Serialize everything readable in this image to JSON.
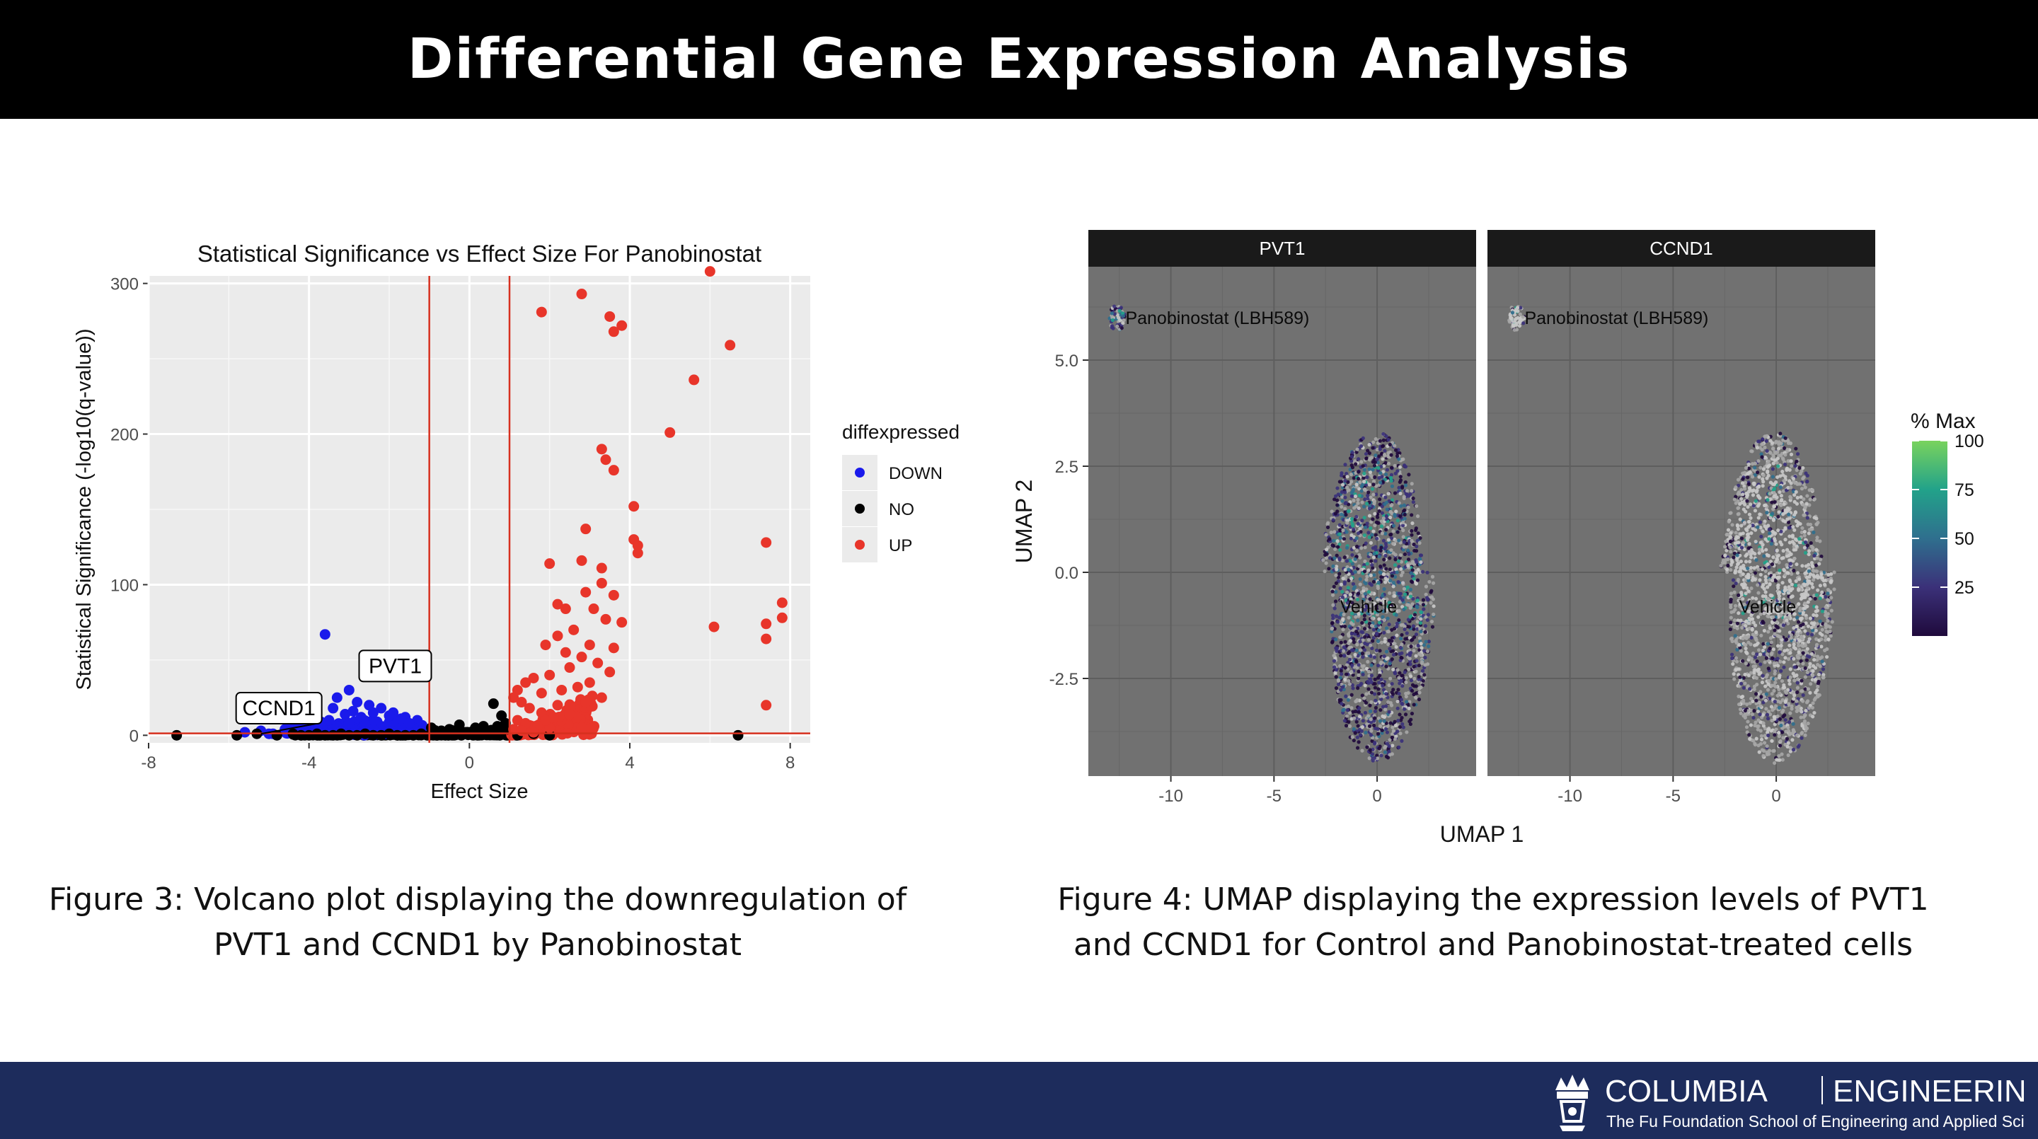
{
  "header": {
    "title": "Differential Gene Expression Analysis"
  },
  "captions": {
    "left_line1": "Figure 3: Volcano plot displaying the downregulation of",
    "left_line2": "PVT1 and CCND1 by Panobinostat",
    "right_line1": "Figure 4: UMAP displaying the expression levels of PVT1",
    "right_line2": "and CCND1 for Control and Panobinostat-treated cells"
  },
  "footer": {
    "brand_left": "COLUMBIA",
    "brand_right": "ENGINEERING",
    "subtitle": "The Fu Foundation School of Engineering and Applied Science"
  },
  "chart_data": [
    {
      "type": "scatter",
      "title": "Statistical Significance vs Effect Size For Panobinostat",
      "xlabel": "Effect Size",
      "ylabel": "Statistical Significance (-log10(q-value))",
      "xlim": [
        -8,
        8.5
      ],
      "ylim": [
        -5,
        305
      ],
      "xticks": [
        -8,
        -4,
        0,
        4,
        8
      ],
      "yticks": [
        0,
        100,
        200,
        300
      ],
      "grid": true,
      "vlines": [
        -1,
        1
      ],
      "hlines": [
        1.3
      ],
      "reference_line_color": "#d7301f",
      "legend": {
        "title": "diffexpressed",
        "position": "right"
      },
      "annotations": [
        {
          "text": "PVT1",
          "x": -2.6,
          "y": 46
        },
        {
          "text": "CCND1",
          "x": -5.2,
          "y": 1
        }
      ],
      "series": [
        {
          "name": "DOWN",
          "color": "#1a1aeb",
          "points": [
            [
              -3.6,
              67
            ],
            [
              -2.6,
              46
            ],
            [
              -3.0,
              30
            ],
            [
              -3.3,
              25
            ],
            [
              -2.8,
              22
            ],
            [
              -2.5,
              20
            ],
            [
              -2.2,
              18
            ],
            [
              -1.9,
              15
            ],
            [
              -1.6,
              12
            ],
            [
              -1.3,
              10
            ],
            [
              -3.8,
              18
            ],
            [
              -4.0,
              12
            ],
            [
              -3.5,
              10
            ],
            [
              -3.1,
              14
            ],
            [
              -2.7,
              12
            ],
            [
              -2.3,
              9
            ],
            [
              -2.0,
              8
            ],
            [
              -1.7,
              6
            ],
            [
              -1.4,
              5
            ],
            [
              -1.2,
              3
            ],
            [
              -4.3,
              6
            ],
            [
              -4.6,
              4
            ],
            [
              -5.2,
              3
            ],
            [
              -5.6,
              2
            ],
            [
              -4.9,
              1
            ],
            [
              -3.9,
              4
            ],
            [
              -3.3,
              6
            ],
            [
              -2.9,
              5
            ],
            [
              -2.4,
              4
            ],
            [
              -1.9,
              3
            ],
            [
              -1.5,
              2
            ],
            [
              -3.6,
              2
            ],
            [
              -2.8,
              1
            ],
            [
              -2.1,
              1
            ],
            [
              -4.2,
              2
            ],
            [
              -3.0,
              8
            ],
            [
              -2.6,
              7
            ],
            [
              -1.8,
              9
            ],
            [
              -1.1,
              4
            ],
            [
              -3.4,
              18
            ],
            [
              -2.0,
              13
            ],
            [
              -1.5,
              8
            ],
            [
              -2.9,
              16
            ],
            [
              -3.7,
              8
            ],
            [
              -2.4,
              15
            ],
            [
              -1.7,
              11
            ],
            [
              -3.2,
              3
            ],
            [
              -4.4,
              2
            ],
            [
              -5.0,
              1
            ]
          ]
        },
        {
          "name": "NO",
          "color": "#000000",
          "points": [
            [
              -7.3,
              0
            ],
            [
              -5.8,
              0
            ],
            [
              -5.3,
              1
            ],
            [
              -4.8,
              0
            ],
            [
              -4.4,
              1
            ],
            [
              -4.0,
              0
            ],
            [
              -3.6,
              0
            ],
            [
              -3.2,
              1
            ],
            [
              -2.8,
              0
            ],
            [
              -2.4,
              0
            ],
            [
              -2.0,
              1
            ],
            [
              -1.6,
              0
            ],
            [
              -1.2,
              1
            ],
            [
              -0.9,
              2
            ],
            [
              -0.7,
              3
            ],
            [
              -0.5,
              4
            ],
            [
              -0.3,
              3
            ],
            [
              -0.1,
              2
            ],
            [
              0.1,
              3
            ],
            [
              0.3,
              4
            ],
            [
              0.5,
              2
            ],
            [
              0.6,
              21
            ],
            [
              0.8,
              13
            ],
            [
              0.9,
              8
            ],
            [
              0.7,
              6
            ],
            [
              0.4,
              1
            ],
            [
              0.2,
              0
            ],
            [
              0.0,
              1
            ],
            [
              -0.2,
              0
            ],
            [
              -0.4,
              1
            ],
            [
              -0.6,
              0
            ],
            [
              -0.8,
              0
            ],
            [
              -1.0,
              0
            ],
            [
              -1.4,
              0
            ],
            [
              -1.8,
              0
            ],
            [
              -2.2,
              0
            ],
            [
              -2.6,
              1
            ],
            [
              -3.0,
              0
            ],
            [
              -3.4,
              0
            ],
            [
              -3.8,
              1
            ],
            [
              -4.2,
              0
            ],
            [
              6.7,
              0
            ],
            [
              1.2,
              0
            ],
            [
              1.6,
              1
            ],
            [
              2.0,
              0
            ],
            [
              0.95,
              4
            ],
            [
              -0.95,
              5
            ],
            [
              0.35,
              6
            ],
            [
              -0.25,
              7
            ],
            [
              0.15,
              5
            ]
          ]
        },
        {
          "name": "UP",
          "color": "#e8352a",
          "points": [
            [
              6.0,
              308
            ],
            [
              2.8,
              293
            ],
            [
              1.8,
              281
            ],
            [
              3.5,
              278
            ],
            [
              3.8,
              272
            ],
            [
              3.6,
              268
            ],
            [
              6.5,
              259
            ],
            [
              5.6,
              236
            ],
            [
              5.0,
              201
            ],
            [
              3.3,
              190
            ],
            [
              3.4,
              183
            ],
            [
              3.6,
              176
            ],
            [
              4.1,
              152
            ],
            [
              2.9,
              137
            ],
            [
              4.1,
              130
            ],
            [
              4.2,
              126
            ],
            [
              4.2,
              121
            ],
            [
              7.4,
              128
            ],
            [
              3.3,
              111
            ],
            [
              2.0,
              114
            ],
            [
              2.8,
              116
            ],
            [
              3.3,
              101
            ],
            [
              3.6,
              93
            ],
            [
              2.9,
              95
            ],
            [
              3.1,
              84
            ],
            [
              2.4,
              84
            ],
            [
              2.2,
              87
            ],
            [
              7.8,
              88
            ],
            [
              7.8,
              78
            ],
            [
              7.4,
              74
            ],
            [
              7.4,
              64
            ],
            [
              6.1,
              72
            ],
            [
              3.8,
              75
            ],
            [
              3.4,
              77
            ],
            [
              2.6,
              70
            ],
            [
              2.2,
              66
            ],
            [
              3.0,
              60
            ],
            [
              3.6,
              58
            ],
            [
              1.9,
              60
            ],
            [
              2.4,
              55
            ],
            [
              2.8,
              52
            ],
            [
              3.2,
              48
            ],
            [
              3.5,
              42
            ],
            [
              2.5,
              45
            ],
            [
              2.0,
              40
            ],
            [
              1.6,
              38
            ],
            [
              1.4,
              35
            ],
            [
              1.2,
              30
            ],
            [
              1.1,
              25
            ],
            [
              1.3,
              22
            ],
            [
              1.8,
              28
            ],
            [
              2.3,
              30
            ],
            [
              2.7,
              32
            ],
            [
              3.0,
              35
            ],
            [
              1.5,
              18
            ],
            [
              1.8,
              15
            ],
            [
              2.1,
              12
            ],
            [
              2.5,
              14
            ],
            [
              1.2,
              10
            ],
            [
              1.4,
              8
            ],
            [
              1.7,
              6
            ],
            [
              2.0,
              5
            ],
            [
              1.1,
              4
            ],
            [
              1.3,
              3
            ],
            [
              1.6,
              2
            ],
            [
              7.4,
              20
            ],
            [
              3.3,
              25
            ],
            [
              2.9,
              22
            ],
            [
              2.2,
              20
            ],
            [
              1.9,
              10
            ]
          ]
        }
      ]
    },
    {
      "type": "scatter",
      "subtype": "umap-facets",
      "xlabel": "UMAP 1",
      "ylabel": "UMAP 2",
      "xlim": [
        -14,
        4.8
      ],
      "ylim": [
        -4.8,
        7.2
      ],
      "xticks": [
        -10,
        -5,
        0
      ],
      "yticks": [
        -2.5,
        0.0,
        2.5,
        5.0
      ],
      "ytick_labels": [
        "-2.5",
        "0.0",
        "2.5",
        "5.0"
      ],
      "panel_background": "#717171",
      "facets": [
        {
          "name": "PVT1",
          "bright_fraction": 0.15
        },
        {
          "name": "CCND1",
          "bright_fraction": 0.55
        }
      ],
      "cluster_labels": [
        {
          "text": "Panobinostat (LBH589)",
          "x": -12.2,
          "y": 6.0
        },
        {
          "text": "Vehicle",
          "x": -1.8,
          "y": -0.8
        }
      ],
      "clusters": [
        {
          "name": "Panobinostat (LBH589)",
          "center": [
            -12.6,
            6.0
          ],
          "radius": [
            0.4,
            0.3
          ]
        },
        {
          "name": "Vehicle",
          "center": [
            0.0,
            -0.6
          ],
          "radius": [
            2.5,
            3.9
          ]
        }
      ],
      "colorbar": {
        "title": "% Max",
        "ticks": [
          25,
          50,
          75,
          100
        ],
        "range": [
          0,
          100
        ],
        "colors": [
          "#1f0a3c",
          "#3b3179",
          "#2f6f8e",
          "#22a28a",
          "#79d35d"
        ]
      }
    }
  ]
}
